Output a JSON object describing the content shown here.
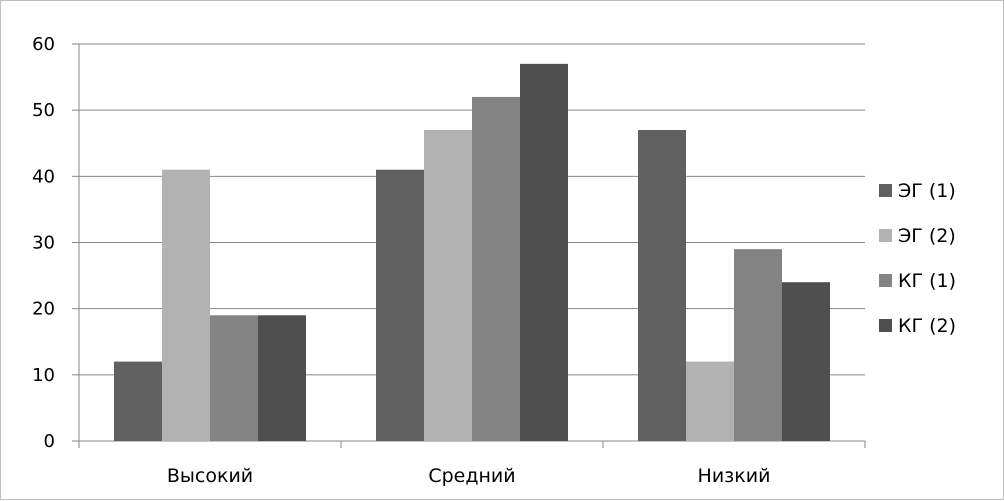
{
  "chart_data": {
    "type": "bar",
    "categories": [
      "Высокий",
      "Средний",
      "Низкий"
    ],
    "series": [
      {
        "name": "ЭГ (1)",
        "values": [
          12,
          41,
          47
        ],
        "color": "#606060"
      },
      {
        "name": "ЭГ (2)",
        "values": [
          41,
          47,
          12
        ],
        "color": "#b2b2b2"
      },
      {
        "name": "КГ (1)",
        "values": [
          19,
          52,
          29
        ],
        "color": "#838383"
      },
      {
        "name": "КГ (2)",
        "values": [
          19,
          57,
          24
        ],
        "color": "#4f4f4f"
      }
    ],
    "ylim": [
      0,
      60
    ],
    "yticks": [
      0,
      10,
      20,
      30,
      40,
      50,
      60
    ],
    "grid": true,
    "legend_position": "right",
    "title": "",
    "xlabel": "",
    "ylabel": ""
  }
}
